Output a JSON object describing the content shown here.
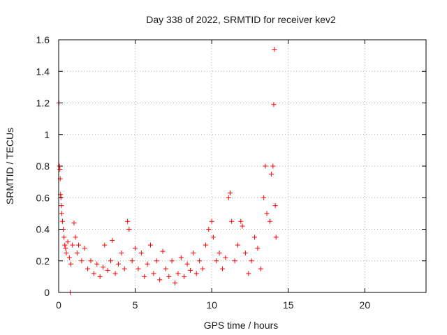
{
  "chart_data": {
    "type": "scatter",
    "title": "Day 338 of 2022, SRMTID for receiver kev2",
    "xlabel": "GPS time / hours",
    "ylabel": "SRMTID / TECUs",
    "xlim": [
      0,
      24
    ],
    "ylim": [
      0,
      1.6
    ],
    "xticks": [
      0,
      5,
      10,
      15,
      20
    ],
    "xtick_labels": [
      "0",
      "5",
      "10",
      "15",
      "20"
    ],
    "yticks": [
      0,
      0.2,
      0.4,
      0.6,
      0.8,
      1,
      1.2,
      1.4,
      1.6
    ],
    "ytick_labels": [
      "0",
      "0.2",
      "0.4",
      "0.6",
      "0.8",
      "1",
      "1.2",
      "1.4",
      "1.6"
    ],
    "grid": true,
    "marker": "+",
    "color": "#ff0000",
    "series": [
      {
        "name": "kev2",
        "points": [
          [
            0.02,
            1.2
          ],
          [
            0.05,
            0.8
          ],
          [
            0.08,
            0.78
          ],
          [
            0.1,
            0.72
          ],
          [
            0.12,
            0.62
          ],
          [
            0.15,
            0.6
          ],
          [
            0.18,
            0.55
          ],
          [
            0.2,
            0.5
          ],
          [
            0.25,
            0.45
          ],
          [
            0.3,
            0.4
          ],
          [
            0.35,
            0.35
          ],
          [
            0.4,
            0.3
          ],
          [
            0.45,
            0.28
          ],
          [
            0.5,
            0.25
          ],
          [
            0.6,
            0.32
          ],
          [
            0.7,
            0.22
          ],
          [
            0.75,
            0.0
          ],
          [
            0.8,
            0.18
          ],
          [
            0.9,
            0.3
          ],
          [
            1.0,
            0.44
          ],
          [
            1.1,
            0.35
          ],
          [
            1.2,
            0.25
          ],
          [
            1.3,
            0.3
          ],
          [
            1.5,
            0.2
          ],
          [
            1.7,
            0.28
          ],
          [
            1.9,
            0.15
          ],
          [
            2.1,
            0.2
          ],
          [
            2.3,
            0.12
          ],
          [
            2.5,
            0.18
          ],
          [
            2.7,
            0.1
          ],
          [
            2.9,
            0.16
          ],
          [
            3.0,
            0.3
          ],
          [
            3.2,
            0.14
          ],
          [
            3.4,
            0.2
          ],
          [
            3.5,
            0.33
          ],
          [
            3.7,
            0.12
          ],
          [
            3.9,
            0.18
          ],
          [
            4.1,
            0.25
          ],
          [
            4.3,
            0.15
          ],
          [
            4.5,
            0.45
          ],
          [
            4.6,
            0.4
          ],
          [
            4.8,
            0.2
          ],
          [
            5.0,
            0.28
          ],
          [
            5.2,
            0.15
          ],
          [
            5.4,
            0.25
          ],
          [
            5.6,
            0.1
          ],
          [
            5.8,
            0.18
          ],
          [
            6.0,
            0.3
          ],
          [
            6.2,
            0.12
          ],
          [
            6.4,
            0.2
          ],
          [
            6.6,
            0.08
          ],
          [
            6.8,
            0.26
          ],
          [
            7.0,
            0.15
          ],
          [
            7.2,
            0.1
          ],
          [
            7.4,
            0.2
          ],
          [
            7.6,
            0.06
          ],
          [
            7.8,
            0.12
          ],
          [
            8.0,
            0.22
          ],
          [
            8.2,
            0.1
          ],
          [
            8.4,
            0.18
          ],
          [
            8.6,
            0.14
          ],
          [
            8.8,
            0.25
          ],
          [
            9.0,
            0.12
          ],
          [
            9.2,
            0.2
          ],
          [
            9.4,
            0.15
          ],
          [
            9.6,
            0.3
          ],
          [
            9.8,
            0.4
          ],
          [
            10.0,
            0.45
          ],
          [
            10.1,
            0.35
          ],
          [
            10.3,
            0.2
          ],
          [
            10.5,
            0.25
          ],
          [
            10.7,
            0.15
          ],
          [
            10.9,
            0.22
          ],
          [
            11.1,
            0.6
          ],
          [
            11.2,
            0.63
          ],
          [
            11.3,
            0.45
          ],
          [
            11.5,
            0.2
          ],
          [
            11.7,
            0.3
          ],
          [
            11.9,
            0.45
          ],
          [
            12.0,
            0.42
          ],
          [
            12.2,
            0.25
          ],
          [
            12.4,
            0.12
          ],
          [
            12.6,
            0.2
          ],
          [
            12.8,
            0.35
          ],
          [
            13.0,
            0.28
          ],
          [
            13.2,
            0.15
          ],
          [
            13.4,
            0.6
          ],
          [
            13.5,
            0.8
          ],
          [
            13.6,
            0.5
          ],
          [
            13.8,
            0.45
          ],
          [
            13.9,
            0.75
          ],
          [
            14.0,
            0.8
          ],
          [
            14.05,
            1.19
          ],
          [
            14.1,
            1.54
          ],
          [
            14.15,
            0.55
          ],
          [
            14.2,
            0.35
          ]
        ]
      }
    ]
  }
}
